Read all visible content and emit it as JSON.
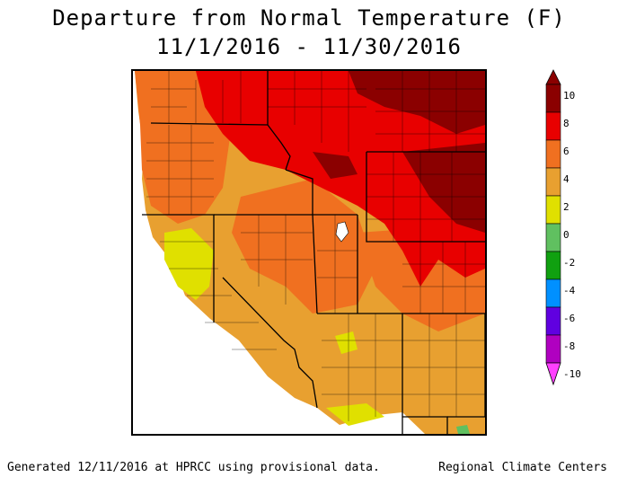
{
  "title_line1": "Departure from Normal Temperature (F)",
  "title_line2": "11/1/2016 - 11/30/2016",
  "legend": {
    "ticks": [
      "10",
      "8",
      "6",
      "4",
      "2",
      "0",
      "-2",
      "-4",
      "-6",
      "-8",
      "-10"
    ],
    "bands": [
      {
        "range": "8 to 10",
        "color": "#8b0000"
      },
      {
        "range": "6 to 8",
        "color": "#e80000"
      },
      {
        "range": "4 to 6",
        "color": "#f07020"
      },
      {
        "range": "2 to 4",
        "color": "#e8a030"
      },
      {
        "range": "0 to 2",
        "color": "#e0e000"
      },
      {
        "range": "-2 to 0",
        "color": "#60c060"
      },
      {
        "range": "-4 to -2",
        "color": "#10a010"
      },
      {
        "range": "-6 to -4",
        "color": "#0090ff"
      },
      {
        "range": "-8 to -6",
        "color": "#6000e0"
      },
      {
        "range": "-10 to -8",
        "color": "#b000c0"
      },
      {
        "range": "below -10",
        "color": "#ff40ff"
      }
    ]
  },
  "footer_left": "Generated 12/11/2016 at HPRCC using provisional data.",
  "footer_right": "Regional Climate Centers"
}
